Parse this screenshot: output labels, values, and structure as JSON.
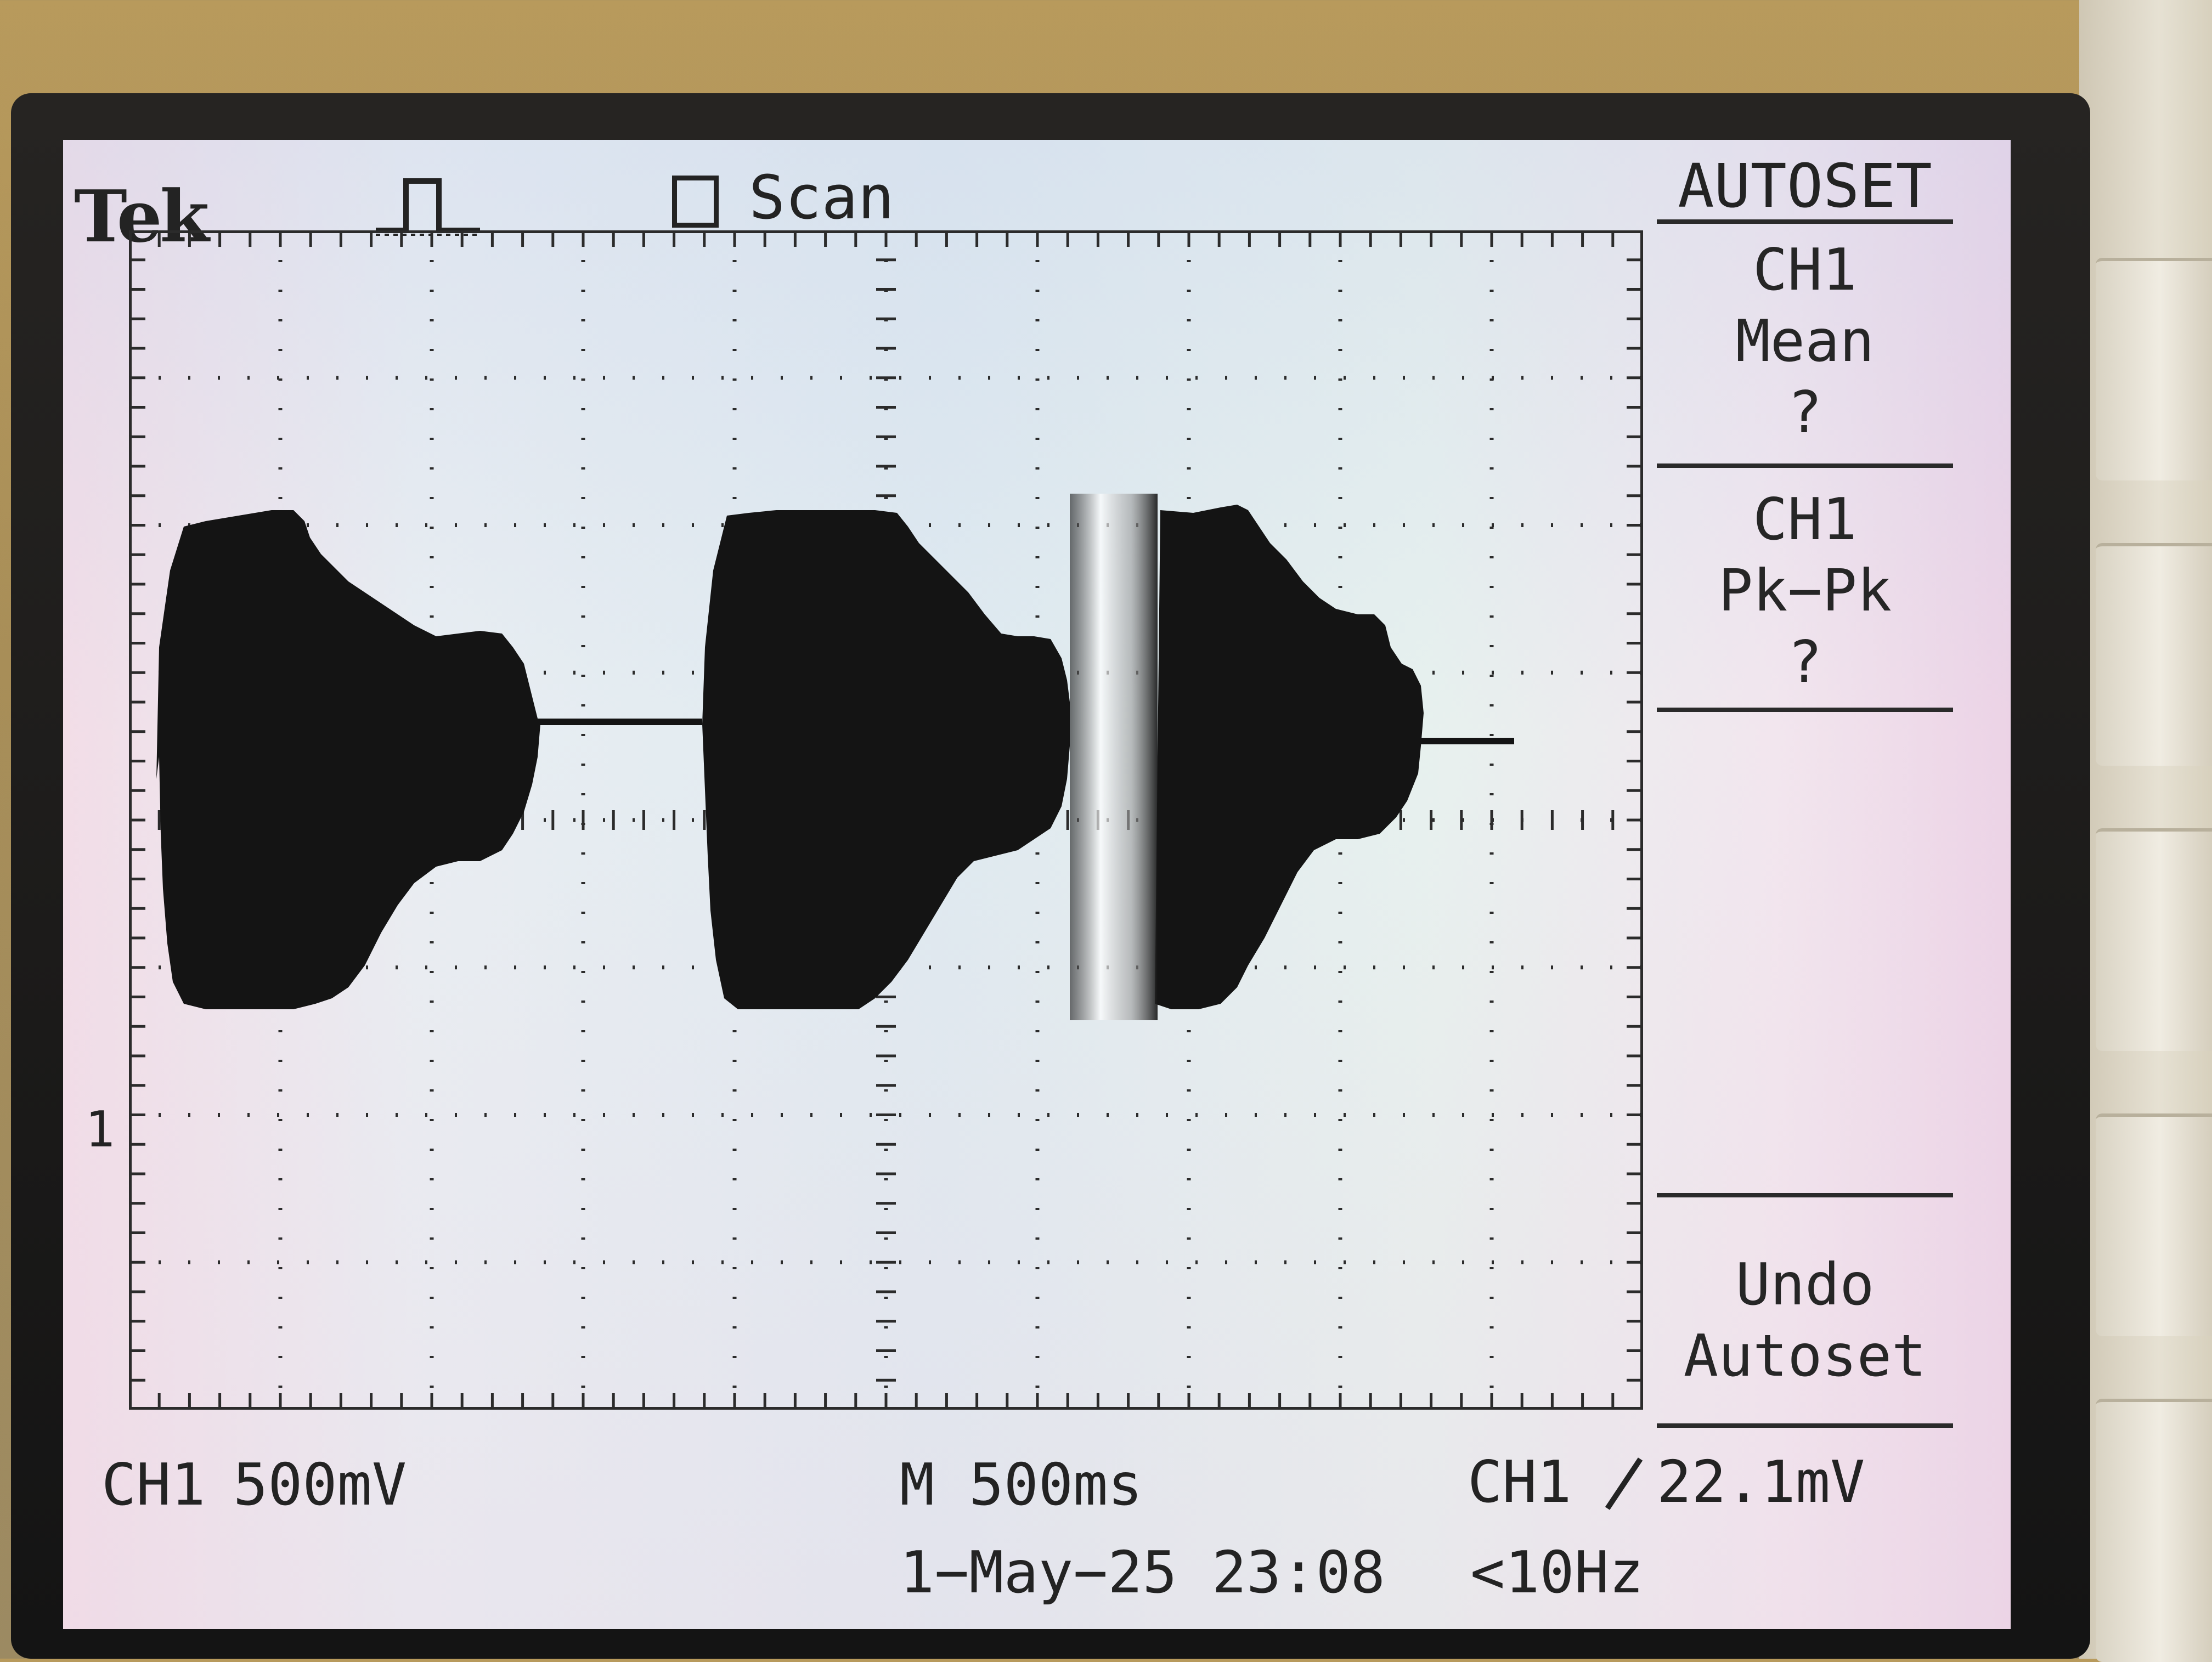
{
  "screen": {
    "brand": "Tek",
    "acquisition_mode": "Scan",
    "trigger_icon": "trigger-pulse-icon",
    "ground_marker": "1"
  },
  "side_menu": {
    "title": "AUTOSET",
    "items": [
      {
        "lines": [
          "CH1",
          "Mean",
          "?"
        ]
      },
      {
        "lines": [
          "CH1",
          "Pk−Pk",
          "?"
        ]
      },
      {
        "lines": []
      },
      {
        "lines": [
          "Undo",
          "Autoset"
        ]
      }
    ]
  },
  "status_bar": {
    "ch1_label": "CH1",
    "ch1_scale": "500mV",
    "timebase": "M 500ms",
    "date_time": "1−May−25 23:08",
    "trigger_source": "CH1",
    "trigger_slope_icon": "rising-edge-icon",
    "trigger_level": "22.1mV",
    "frequency": "<10Hz"
  },
  "colors": {
    "trace": "#141414",
    "graticule": "#2b2b2b",
    "screen_bg": "#e5eef1"
  }
}
